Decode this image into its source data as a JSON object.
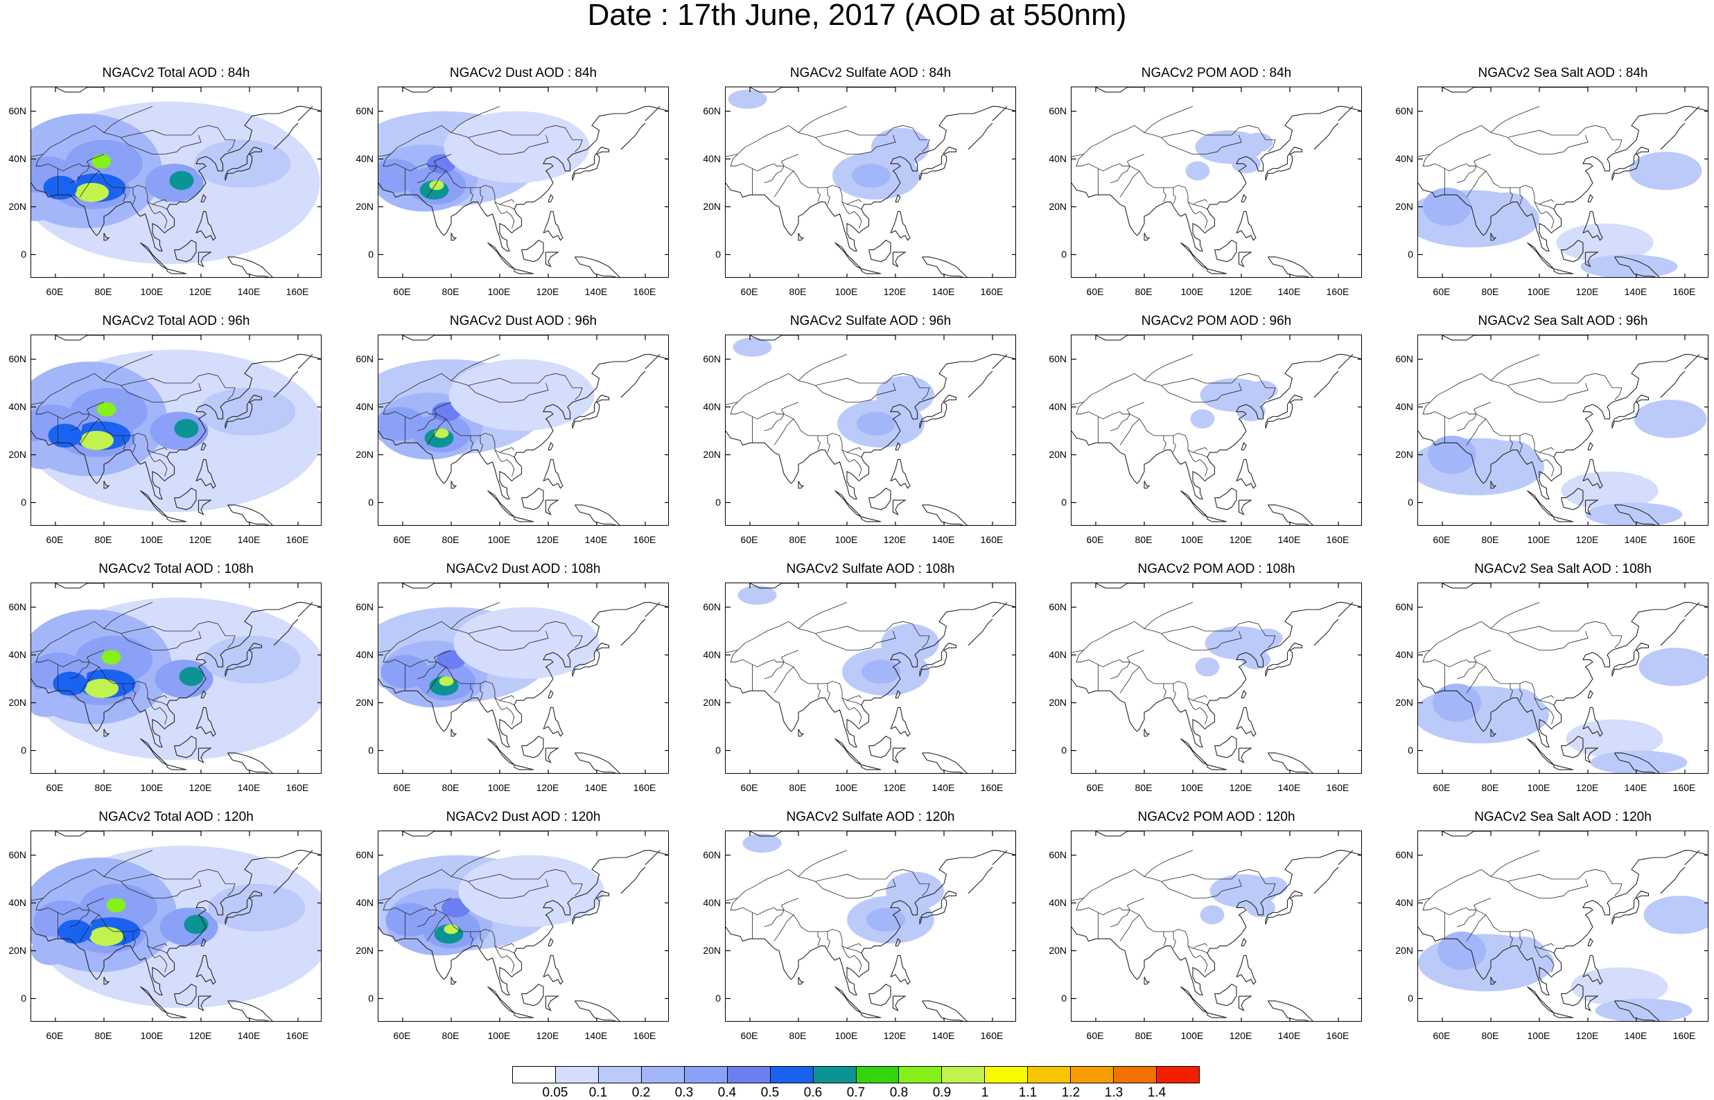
{
  "title": "Date : 17th June, 2017 (AOD at 550nm)",
  "lat_ticks": [
    "60N",
    "40N",
    "20N",
    "0"
  ],
  "lat_values": [
    60,
    40,
    20,
    0
  ],
  "lon_ticks": [
    "60E",
    "80E",
    "100E",
    "120E",
    "140E",
    "160E"
  ],
  "lon_values": [
    60,
    80,
    100,
    120,
    140,
    160
  ],
  "map_extent": {
    "lon": [
      50,
      170
    ],
    "lat": [
      -10,
      70
    ]
  },
  "columns": [
    "total",
    "dust",
    "sulfate",
    "pom",
    "seasalt"
  ],
  "panels": [
    [
      {
        "title": "NGACv2 Total AOD : 84h",
        "variable": "total",
        "hour": 84
      },
      {
        "title": "NGACv2 Dust AOD : 84h",
        "variable": "dust",
        "hour": 84
      },
      {
        "title": "NGACv2 Sulfate AOD : 84h",
        "variable": "sulfate",
        "hour": 84
      },
      {
        "title": "NGACv2 POM AOD : 84h",
        "variable": "pom",
        "hour": 84
      },
      {
        "title": "NGACv2 Sea Salt AOD : 84h",
        "variable": "seasalt",
        "hour": 84
      }
    ],
    [
      {
        "title": "NGACv2 Total AOD : 96h",
        "variable": "total",
        "hour": 96
      },
      {
        "title": "NGACv2 Dust AOD : 96h",
        "variable": "dust",
        "hour": 96
      },
      {
        "title": "NGACv2 Sulfate AOD : 96h",
        "variable": "sulfate",
        "hour": 96
      },
      {
        "title": "NGACv2 POM AOD : 96h",
        "variable": "pom",
        "hour": 96
      },
      {
        "title": "NGACv2 Sea Salt AOD : 96h",
        "variable": "seasalt",
        "hour": 96
      }
    ],
    [
      {
        "title": "NGACv2 Total AOD : 108h",
        "variable": "total",
        "hour": 108
      },
      {
        "title": "NGACv2 Dust AOD : 108h",
        "variable": "dust",
        "hour": 108
      },
      {
        "title": "NGACv2 Sulfate AOD : 108h",
        "variable": "sulfate",
        "hour": 108
      },
      {
        "title": "NGACv2 POM AOD : 108h",
        "variable": "pom",
        "hour": 108
      },
      {
        "title": "NGACv2 Sea Salt AOD : 108h",
        "variable": "seasalt",
        "hour": 108
      }
    ],
    [
      {
        "title": "NGACv2 Total AOD : 120h",
        "variable": "total",
        "hour": 120
      },
      {
        "title": "NGACv2 Dust AOD : 120h",
        "variable": "dust",
        "hour": 120
      },
      {
        "title": "NGACv2 Sulfate AOD : 120h",
        "variable": "sulfate",
        "hour": 120
      },
      {
        "title": "NGACv2 POM AOD : 120h",
        "variable": "pom",
        "hour": 120
      },
      {
        "title": "NGACv2 Sea Salt  AOD : 120h",
        "variable": "seasalt",
        "hour": 120
      }
    ]
  ],
  "colorbar": {
    "labels": [
      "0.05",
      "0.1",
      "0.2",
      "0.3",
      "0.4",
      "0.5",
      "0.6",
      "0.7",
      "0.8",
      "0.9",
      "1",
      "1.1",
      "1.2",
      "1.3",
      "1.4"
    ],
    "colors": [
      "#ffffff",
      "#d4ddfb",
      "#bccafa",
      "#a3b6f9",
      "#8aa1f7",
      "#6b7ff3",
      "#1a63f2",
      "#0c9494",
      "#34d40c",
      "#86f019",
      "#c2f24d",
      "#f9f900",
      "#f7c400",
      "#f59e00",
      "#f27100",
      "#f21f00"
    ]
  },
  "colors": {
    "land_outline": "#222222",
    "frame": "#000000"
  }
}
